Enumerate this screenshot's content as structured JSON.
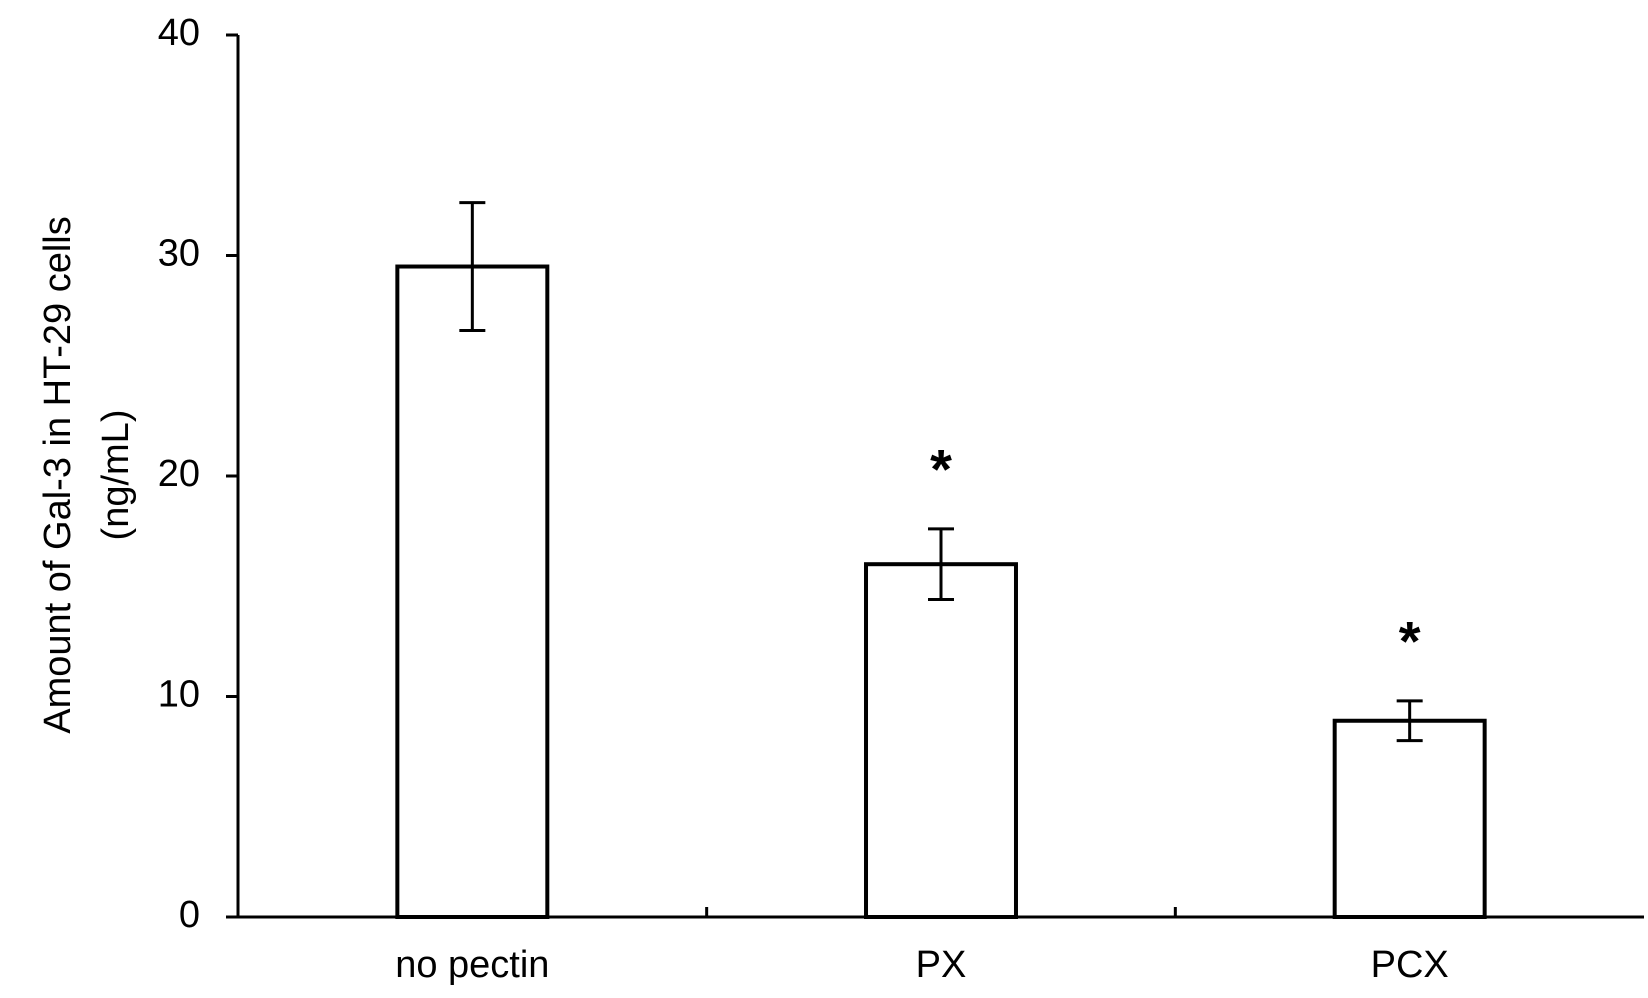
{
  "chart_data": {
    "type": "bar",
    "y_label": [
      "Amount of Gal-3 in HT-29 cells",
      "(ng/mL)"
    ],
    "categories": [
      "no pectin",
      "PX",
      "PCX"
    ],
    "values": [
      29.5,
      16,
      8.9
    ],
    "errors": [
      2.9,
      1.6,
      0.9
    ],
    "annotations": [
      null,
      "*",
      "*"
    ],
    "color": "#ffffff",
    "ylim": [
      0,
      40
    ],
    "yticks": [
      0,
      10,
      20,
      30,
      40
    ],
    "grid": false
  }
}
